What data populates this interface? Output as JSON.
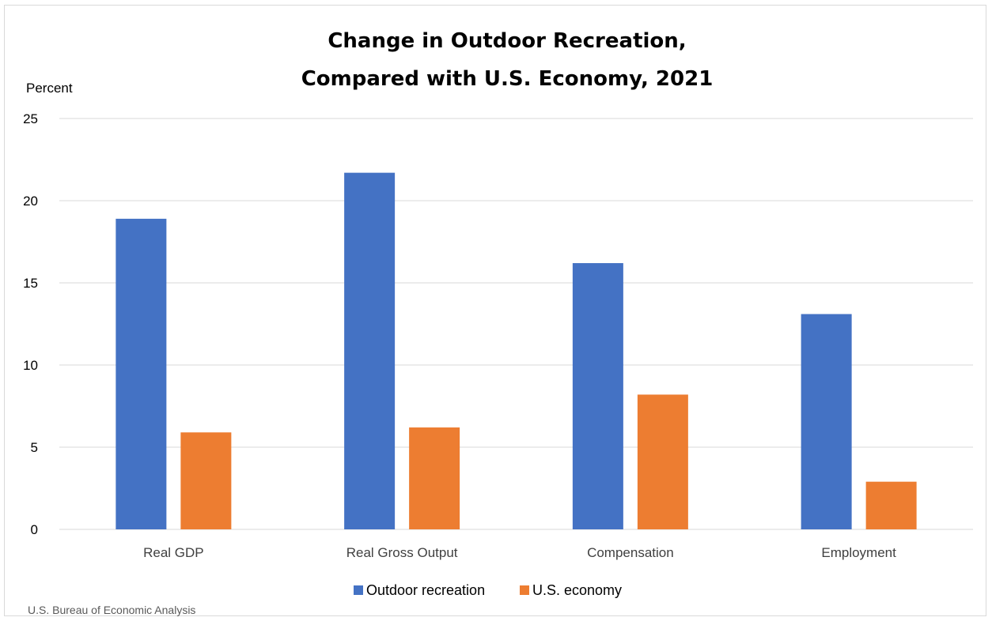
{
  "chart_data": {
    "type": "bar",
    "title_lines": [
      "Change in Outdoor Recreation,",
      "Compared with U.S. Economy, 2021"
    ],
    "ylabel": "Percent",
    "xlabel": "",
    "ylim": [
      0,
      25
    ],
    "yticks": [
      0,
      5,
      10,
      15,
      20,
      25
    ],
    "grid": true,
    "legend_position": "bottom",
    "categories": [
      "Real GDP",
      "Real Gross Output",
      "Compensation",
      "Employment"
    ],
    "series": [
      {
        "name": "Outdoor recreation",
        "color": "#4472c4",
        "values": [
          18.9,
          21.7,
          16.2,
          13.1
        ]
      },
      {
        "name": "U.S. economy",
        "color": "#ed7d31",
        "values": [
          5.9,
          6.2,
          8.2,
          2.9
        ]
      }
    ],
    "source": "U.S. Bureau of Economic Analysis"
  }
}
